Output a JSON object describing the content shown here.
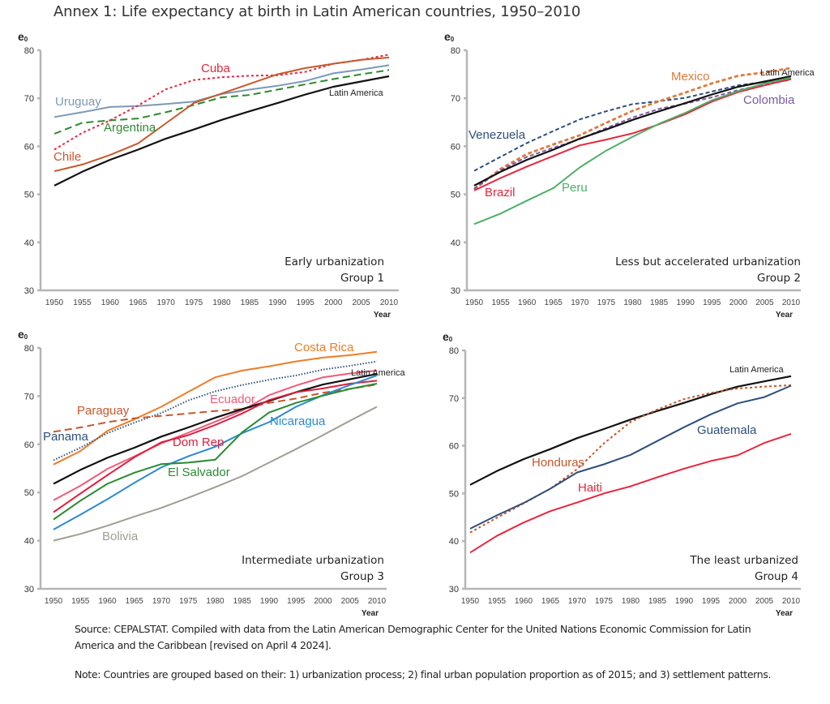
{
  "title": "Annex 1: Life expectancy at birth in Latin American countries, 1950–2010",
  "source_note": "Source: CEPALSTAT. Compiled with data from the Latin American Demographic Center for the United Nations Economic Commission for Latin America and the Caribbean [revised on April 4 2024].",
  "grouping_note": "Note: Countries are grouped based on their: 1) urbanization process; 2) final urban population proportion as of 2015; and 3) settlement patterns.",
  "chart_data": [
    {
      "type": "line",
      "title": "Early urbanization",
      "subtitle": "Group 1",
      "ylabel": "e",
      "ylabel_sub": "0",
      "xlabel": "Year",
      "ylim": [
        30,
        80
      ],
      "yticks": [
        30,
        40,
        50,
        60,
        70,
        80
      ],
      "x": [
        1950,
        1955,
        1960,
        1965,
        1970,
        1975,
        1980,
        1985,
        1990,
        1995,
        2000,
        2005,
        2010
      ],
      "xtick_labels": [
        "1950",
        "1955",
        "1960",
        "1965",
        "1970",
        "1975",
        "1980",
        "1985",
        "1990",
        "1995",
        "2000",
        "2005",
        "2010"
      ],
      "grid": false,
      "series": [
        {
          "name": "Uruguay",
          "color": "#7a9ab5",
          "style": "solid",
          "values": [
            66.1,
            67.1,
            68.2,
            68.4,
            68.8,
            69.3,
            70.9,
            71.8,
            72.6,
            73.6,
            75.2,
            76.0,
            76.9
          ]
        },
        {
          "name": "Argentina",
          "color": "#2e8b2e",
          "style": "dashed",
          "values": [
            62.6,
            64.9,
            65.4,
            65.8,
            67.1,
            68.6,
            70.2,
            70.7,
            71.8,
            72.9,
            74.0,
            75.0,
            75.9
          ]
        },
        {
          "name": "Cuba",
          "color": "#e8253a",
          "style": "dotted",
          "values": [
            59.3,
            62.8,
            65.4,
            68.5,
            71.9,
            73.8,
            74.4,
            74.7,
            74.8,
            75.5,
            77.2,
            78.0,
            79.1
          ]
        },
        {
          "name": "Chile",
          "color": "#c8572a",
          "style": "solid",
          "values": [
            54.8,
            56.2,
            58.2,
            60.6,
            64.8,
            69.0,
            71.0,
            73.0,
            75.0,
            76.3,
            77.2,
            78.0,
            78.5
          ]
        },
        {
          "name": "Latin America",
          "color": "#111111",
          "style": "solid",
          "values": [
            51.8,
            54.7,
            57.2,
            59.3,
            61.6,
            63.5,
            65.5,
            67.3,
            69.0,
            70.8,
            72.4,
            73.5,
            74.6
          ]
        }
      ]
    },
    {
      "type": "line",
      "title": "Less but accelerated urbanization",
      "subtitle": "Group 2",
      "ylabel": "e",
      "ylabel_sub": "0",
      "xlabel": "Year",
      "ylim": [
        30,
        80
      ],
      "yticks": [
        30,
        40,
        50,
        60,
        70,
        80
      ],
      "x": [
        1950,
        1955,
        1960,
        1965,
        1970,
        1975,
        1980,
        1985,
        1990,
        1995,
        2000,
        2005,
        2010
      ],
      "xtick_labels": [
        "1950",
        "1955",
        "1960",
        "1965",
        "1970",
        "1975",
        "1980",
        "1985",
        "1990",
        "1995",
        "2000",
        "2005",
        "2010"
      ],
      "grid": false,
      "series": [
        {
          "name": "Venezuela",
          "color": "#2d4f7c",
          "style": "dashed",
          "values": [
            54.9,
            57.8,
            60.7,
            63.2,
            65.6,
            67.3,
            68.8,
            69.4,
            70.1,
            71.4,
            72.7,
            73.4,
            74.0
          ]
        },
        {
          "name": "Mexico",
          "color": "#e07a3c",
          "style": "dashed",
          "values": [
            51.0,
            55.3,
            58.4,
            60.4,
            62.3,
            64.9,
            67.4,
            69.4,
            71.2,
            73.1,
            74.7,
            75.4,
            76.3
          ]
        },
        {
          "name": "Colombia",
          "color": "#7a5aa0",
          "style": "dashed",
          "values": [
            51.2,
            55.0,
            57.8,
            59.7,
            61.5,
            63.8,
            66.0,
            67.8,
            68.9,
            70.2,
            71.7,
            72.9,
            73.9
          ]
        },
        {
          "name": "Latin America",
          "color": "#111111",
          "style": "solid",
          "values": [
            51.8,
            54.7,
            57.2,
            59.3,
            61.6,
            63.5,
            65.5,
            67.3,
            69.0,
            70.8,
            72.4,
            73.5,
            74.6
          ]
        },
        {
          "name": "Brazil",
          "color": "#e8253a",
          "style": "solid",
          "values": [
            50.8,
            53.4,
            55.8,
            58.0,
            60.2,
            61.4,
            62.7,
            64.6,
            66.7,
            69.3,
            71.3,
            72.7,
            74.0
          ]
        },
        {
          "name": "Peru",
          "color": "#4caf66",
          "style": "solid",
          "values": [
            43.8,
            46.0,
            48.7,
            51.3,
            55.6,
            59.1,
            62.0,
            64.7,
            67.0,
            69.6,
            71.5,
            73.1,
            74.3
          ]
        }
      ]
    },
    {
      "type": "line",
      "title": "Intermediate urbanization",
      "subtitle": "Group 3",
      "ylabel": "e",
      "ylabel_sub": "0",
      "xlabel": "Year",
      "ylim": [
        30,
        80
      ],
      "yticks": [
        30,
        40,
        50,
        60,
        70,
        80
      ],
      "x": [
        1950,
        1955,
        1960,
        1965,
        1970,
        1975,
        1980,
        1985,
        1990,
        1995,
        2000,
        2005,
        2010
      ],
      "xtick_labels": [
        "1950",
        "1955",
        "1960",
        "1965",
        "1970",
        "1975",
        "1980",
        "1985",
        "1990",
        "1995",
        "2000",
        "2005",
        "2010"
      ],
      "grid": false,
      "series": [
        {
          "name": "Costa Rica",
          "color": "#f07c28",
          "style": "solid",
          "values": [
            55.8,
            58.6,
            62.8,
            65.2,
            67.8,
            70.9,
            73.9,
            75.3,
            76.2,
            77.2,
            78.0,
            78.5,
            79.2
          ]
        },
        {
          "name": "Panama",
          "color": "#2d4f7c",
          "style": "dotted",
          "values": [
            56.7,
            59.3,
            62.3,
            64.5,
            66.5,
            69.1,
            71.0,
            72.3,
            73.4,
            74.3,
            75.5,
            76.3,
            77.2
          ]
        },
        {
          "name": "Paraguay",
          "color": "#c8572a",
          "style": "dashed",
          "values": [
            62.6,
            63.5,
            64.6,
            65.4,
            65.9,
            66.4,
            66.9,
            67.3,
            68.6,
            69.5,
            70.7,
            71.5,
            72.4
          ]
        },
        {
          "name": "Ecuador",
          "color": "#f05a78",
          "style": "solid",
          "values": [
            48.4,
            51.4,
            54.9,
            57.5,
            60.2,
            62.4,
            64.7,
            67.0,
            70.2,
            72.2,
            73.9,
            74.7,
            75.3
          ]
        },
        {
          "name": "Latin America",
          "color": "#111111",
          "style": "solid",
          "values": [
            51.8,
            54.7,
            57.2,
            59.3,
            61.6,
            63.5,
            65.5,
            67.3,
            69.0,
            70.8,
            72.4,
            73.5,
            74.6
          ]
        },
        {
          "name": "Dom Rep",
          "color": "#e01e3c",
          "style": "solid",
          "values": [
            45.9,
            49.8,
            53.6,
            57.3,
            60.4,
            61.9,
            64.0,
            66.4,
            69.2,
            70.8,
            71.6,
            72.6,
            73.2
          ]
        },
        {
          "name": "Nicaragua",
          "color": "#2a8ad4",
          "style": "solid",
          "values": [
            42.3,
            45.4,
            48.6,
            52.0,
            55.2,
            57.5,
            59.5,
            62.3,
            64.6,
            67.8,
            70.2,
            72.3,
            74.3
          ]
        },
        {
          "name": "El Salvador",
          "color": "#2a8a30",
          "style": "solid",
          "values": [
            44.4,
            48.3,
            51.8,
            54.1,
            55.9,
            56.2,
            56.8,
            62.5,
            66.6,
            68.6,
            70.1,
            71.5,
            72.6
          ]
        },
        {
          "name": "Bolivia",
          "color": "#a09e92",
          "style": "solid",
          "values": [
            40.0,
            41.4,
            43.1,
            45.0,
            46.8,
            48.9,
            51.1,
            53.4,
            56.2,
            59.0,
            61.9,
            64.9,
            67.8
          ]
        }
      ]
    },
    {
      "type": "line",
      "title": "The least urbanized",
      "subtitle": "Group 4",
      "ylabel": "e",
      "ylabel_sub": "0",
      "xlabel": "Year",
      "ylim": [
        30,
        80
      ],
      "yticks": [
        30,
        40,
        50,
        60,
        70,
        80
      ],
      "x": [
        1950,
        1955,
        1960,
        1965,
        1970,
        1975,
        1980,
        1985,
        1990,
        1995,
        2000,
        2005,
        2010
      ],
      "xtick_labels": [
        "1950",
        "1955",
        "1960",
        "1965",
        "1970",
        "1975",
        "1980",
        "1985",
        "1990",
        "1995",
        "2000",
        "2005",
        "2010"
      ],
      "grid": false,
      "series": [
        {
          "name": "Latin America",
          "color": "#111111",
          "style": "solid",
          "values": [
            51.8,
            54.7,
            57.2,
            59.3,
            61.6,
            63.5,
            65.5,
            67.3,
            69.0,
            70.8,
            72.4,
            73.5,
            74.6
          ]
        },
        {
          "name": "Honduras",
          "color": "#c8572a",
          "style": "dotted",
          "values": [
            41.8,
            44.9,
            47.9,
            51.0,
            55.1,
            60.5,
            65.0,
            67.6,
            69.8,
            71.1,
            72.0,
            72.4,
            72.7
          ]
        },
        {
          "name": "Guatemala",
          "color": "#2d4f7c",
          "style": "solid",
          "values": [
            42.6,
            45.4,
            48.0,
            51.0,
            54.4,
            56.1,
            58.1,
            61.0,
            63.9,
            66.6,
            68.9,
            70.2,
            72.6
          ]
        },
        {
          "name": "Haiti",
          "color": "#e8253a",
          "style": "solid",
          "values": [
            37.6,
            41.1,
            43.9,
            46.3,
            48.1,
            50.0,
            51.5,
            53.4,
            55.2,
            56.8,
            58.0,
            60.6,
            62.5
          ]
        }
      ]
    }
  ]
}
